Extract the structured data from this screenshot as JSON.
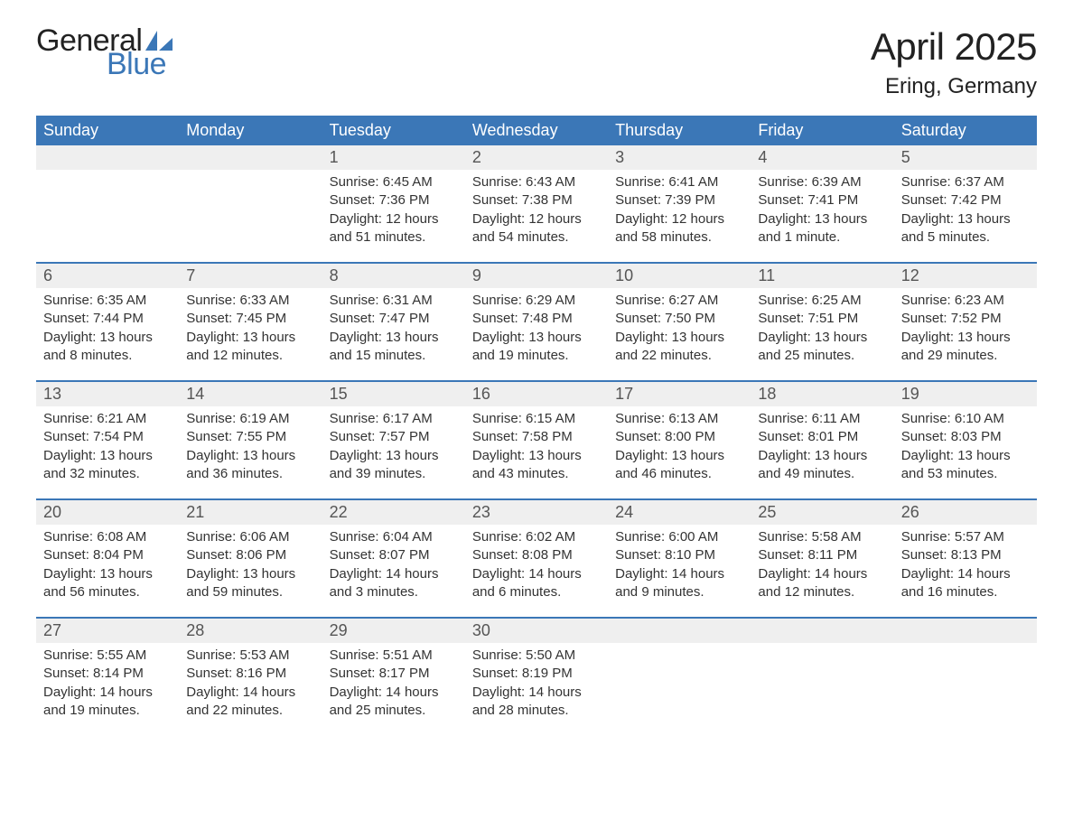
{
  "brand": {
    "word1": "General",
    "word2": "Blue",
    "text_color": "#222222",
    "accent_color": "#3b77b7"
  },
  "title": "April 2025",
  "location": "Ering, Germany",
  "colors": {
    "header_bg": "#3b77b7",
    "header_text": "#ffffff",
    "strip_bg": "#efefef",
    "body_text": "#333333",
    "separator": "#3b77b7",
    "page_bg": "#ffffff"
  },
  "typography": {
    "title_fontsize": 42,
    "location_fontsize": 24,
    "dayhead_fontsize": 18,
    "daynum_fontsize": 18,
    "cell_fontsize": 15
  },
  "layout": {
    "columns": 7,
    "rows": 5
  },
  "day_headers": [
    "Sunday",
    "Monday",
    "Tuesday",
    "Wednesday",
    "Thursday",
    "Friday",
    "Saturday"
  ],
  "weeks": [
    [
      {
        "num": "",
        "lines": []
      },
      {
        "num": "",
        "lines": []
      },
      {
        "num": "1",
        "lines": [
          "Sunrise: 6:45 AM",
          "Sunset: 7:36 PM",
          "Daylight: 12 hours and 51 minutes."
        ]
      },
      {
        "num": "2",
        "lines": [
          "Sunrise: 6:43 AM",
          "Sunset: 7:38 PM",
          "Daylight: 12 hours and 54 minutes."
        ]
      },
      {
        "num": "3",
        "lines": [
          "Sunrise: 6:41 AM",
          "Sunset: 7:39 PM",
          "Daylight: 12 hours and 58 minutes."
        ]
      },
      {
        "num": "4",
        "lines": [
          "Sunrise: 6:39 AM",
          "Sunset: 7:41 PM",
          "Daylight: 13 hours and 1 minute."
        ]
      },
      {
        "num": "5",
        "lines": [
          "Sunrise: 6:37 AM",
          "Sunset: 7:42 PM",
          "Daylight: 13 hours and 5 minutes."
        ]
      }
    ],
    [
      {
        "num": "6",
        "lines": [
          "Sunrise: 6:35 AM",
          "Sunset: 7:44 PM",
          "Daylight: 13 hours and 8 minutes."
        ]
      },
      {
        "num": "7",
        "lines": [
          "Sunrise: 6:33 AM",
          "Sunset: 7:45 PM",
          "Daylight: 13 hours and 12 minutes."
        ]
      },
      {
        "num": "8",
        "lines": [
          "Sunrise: 6:31 AM",
          "Sunset: 7:47 PM",
          "Daylight: 13 hours and 15 minutes."
        ]
      },
      {
        "num": "9",
        "lines": [
          "Sunrise: 6:29 AM",
          "Sunset: 7:48 PM",
          "Daylight: 13 hours and 19 minutes."
        ]
      },
      {
        "num": "10",
        "lines": [
          "Sunrise: 6:27 AM",
          "Sunset: 7:50 PM",
          "Daylight: 13 hours and 22 minutes."
        ]
      },
      {
        "num": "11",
        "lines": [
          "Sunrise: 6:25 AM",
          "Sunset: 7:51 PM",
          "Daylight: 13 hours and 25 minutes."
        ]
      },
      {
        "num": "12",
        "lines": [
          "Sunrise: 6:23 AM",
          "Sunset: 7:52 PM",
          "Daylight: 13 hours and 29 minutes."
        ]
      }
    ],
    [
      {
        "num": "13",
        "lines": [
          "Sunrise: 6:21 AM",
          "Sunset: 7:54 PM",
          "Daylight: 13 hours and 32 minutes."
        ]
      },
      {
        "num": "14",
        "lines": [
          "Sunrise: 6:19 AM",
          "Sunset: 7:55 PM",
          "Daylight: 13 hours and 36 minutes."
        ]
      },
      {
        "num": "15",
        "lines": [
          "Sunrise: 6:17 AM",
          "Sunset: 7:57 PM",
          "Daylight: 13 hours and 39 minutes."
        ]
      },
      {
        "num": "16",
        "lines": [
          "Sunrise: 6:15 AM",
          "Sunset: 7:58 PM",
          "Daylight: 13 hours and 43 minutes."
        ]
      },
      {
        "num": "17",
        "lines": [
          "Sunrise: 6:13 AM",
          "Sunset: 8:00 PM",
          "Daylight: 13 hours and 46 minutes."
        ]
      },
      {
        "num": "18",
        "lines": [
          "Sunrise: 6:11 AM",
          "Sunset: 8:01 PM",
          "Daylight: 13 hours and 49 minutes."
        ]
      },
      {
        "num": "19",
        "lines": [
          "Sunrise: 6:10 AM",
          "Sunset: 8:03 PM",
          "Daylight: 13 hours and 53 minutes."
        ]
      }
    ],
    [
      {
        "num": "20",
        "lines": [
          "Sunrise: 6:08 AM",
          "Sunset: 8:04 PM",
          "Daylight: 13 hours and 56 minutes."
        ]
      },
      {
        "num": "21",
        "lines": [
          "Sunrise: 6:06 AM",
          "Sunset: 8:06 PM",
          "Daylight: 13 hours and 59 minutes."
        ]
      },
      {
        "num": "22",
        "lines": [
          "Sunrise: 6:04 AM",
          "Sunset: 8:07 PM",
          "Daylight: 14 hours and 3 minutes."
        ]
      },
      {
        "num": "23",
        "lines": [
          "Sunrise: 6:02 AM",
          "Sunset: 8:08 PM",
          "Daylight: 14 hours and 6 minutes."
        ]
      },
      {
        "num": "24",
        "lines": [
          "Sunrise: 6:00 AM",
          "Sunset: 8:10 PM",
          "Daylight: 14 hours and 9 minutes."
        ]
      },
      {
        "num": "25",
        "lines": [
          "Sunrise: 5:58 AM",
          "Sunset: 8:11 PM",
          "Daylight: 14 hours and 12 minutes."
        ]
      },
      {
        "num": "26",
        "lines": [
          "Sunrise: 5:57 AM",
          "Sunset: 8:13 PM",
          "Daylight: 14 hours and 16 minutes."
        ]
      }
    ],
    [
      {
        "num": "27",
        "lines": [
          "Sunrise: 5:55 AM",
          "Sunset: 8:14 PM",
          "Daylight: 14 hours and 19 minutes."
        ]
      },
      {
        "num": "28",
        "lines": [
          "Sunrise: 5:53 AM",
          "Sunset: 8:16 PM",
          "Daylight: 14 hours and 22 minutes."
        ]
      },
      {
        "num": "29",
        "lines": [
          "Sunrise: 5:51 AM",
          "Sunset: 8:17 PM",
          "Daylight: 14 hours and 25 minutes."
        ]
      },
      {
        "num": "30",
        "lines": [
          "Sunrise: 5:50 AM",
          "Sunset: 8:19 PM",
          "Daylight: 14 hours and 28 minutes."
        ]
      },
      {
        "num": "",
        "lines": []
      },
      {
        "num": "",
        "lines": []
      },
      {
        "num": "",
        "lines": []
      }
    ]
  ]
}
